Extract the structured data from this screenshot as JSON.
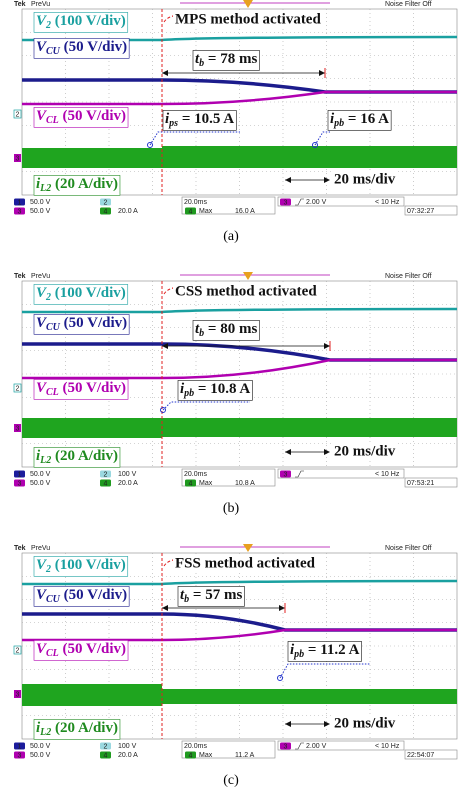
{
  "panels": [
    {
      "header": {
        "brand": "Tek",
        "mode": "PreVu",
        "filter": "Noise Filter Off"
      },
      "channels": [
        {
          "sym": "V",
          "sub": "2",
          "rest": " (100 V/div)"
        },
        {
          "sym": "V",
          "sub": "CU",
          "rest": " (50 V/div)"
        },
        {
          "sym": "V",
          "sub": "CL",
          "rest": " (50 V/div)"
        },
        {
          "sym": "i",
          "sub": "L2",
          "rest": " (20 A/div)"
        }
      ],
      "event": "MPS method activated",
      "duration": {
        "sym": "t",
        "sub": "b",
        "rest": " = 78 ms"
      },
      "currents": [
        {
          "sym": "i",
          "sub": "ps",
          "rest": " = 10.5 A"
        },
        {
          "sym": "i",
          "sub": "pb",
          "rest": " = 16 A"
        }
      ],
      "timebase_note": "20 ms/div",
      "markers": [
        "2",
        "3"
      ],
      "status": {
        "ch1": {
          "id": "1",
          "scale": "50.0 V"
        },
        "ch2": {
          "id": "2"
        },
        "ch3": {
          "id": "3",
          "scale": "50.0 V"
        },
        "ch4": {
          "id": "4",
          "scale": "20.0 A"
        },
        "timebase": "20.0ms",
        "trigger": {
          "id": "3",
          "level": "2.00 V"
        },
        "freq": "< 10 Hz",
        "max": {
          "id": "4",
          "label": "Max",
          "value": "16.0 A"
        },
        "time": "07:32:27"
      },
      "caption": "(a)"
    },
    {
      "header": {
        "brand": "Tek",
        "mode": "PreVu",
        "filter": "Noise Filter Off"
      },
      "channels": [
        {
          "sym": "V",
          "sub": "2",
          "rest": " (100 V/div)"
        },
        {
          "sym": "V",
          "sub": "CU",
          "rest": " (50 V/div)"
        },
        {
          "sym": "V",
          "sub": "CL",
          "rest": " (50 V/div)"
        },
        {
          "sym": "i",
          "sub": "L2",
          "rest": " (20 A/div)"
        }
      ],
      "event": "CSS method activated",
      "duration": {
        "sym": "t",
        "sub": "b",
        "rest": " = 80 ms"
      },
      "currents": [
        {
          "sym": "i",
          "sub": "pb",
          "rest": " = 10.8 A"
        }
      ],
      "timebase_note": "20 ms/div",
      "markers": [
        "2",
        "3"
      ],
      "status": {
        "ch1": {
          "id": "1",
          "scale": "50.0 V"
        },
        "ch2": {
          "id": "2",
          "scale": "100 V"
        },
        "ch3": {
          "id": "3",
          "scale": "50.0 V"
        },
        "ch4": {
          "id": "4",
          "scale": "20.0 A"
        },
        "timebase": "20.0ms",
        "trigger": {
          "id": "3"
        },
        "freq": "< 10 Hz",
        "max": {
          "id": "4",
          "label": "Max",
          "value": "10.8 A"
        },
        "time": "07:53:21"
      },
      "caption": "(b)"
    },
    {
      "header": {
        "brand": "Tek",
        "mode": "PreVu",
        "filter": "Noise Filter Off"
      },
      "channels": [
        {
          "sym": "V",
          "sub": "2",
          "rest": " (100 V/div)"
        },
        {
          "sym": "V",
          "sub": "CU",
          "rest": " (50 V/div)"
        },
        {
          "sym": "V",
          "sub": "CL",
          "rest": " (50 V/div)"
        },
        {
          "sym": "i",
          "sub": "L2",
          "rest": " (20 A/div)"
        }
      ],
      "event": "FSS method activated",
      "duration": {
        "sym": "t",
        "sub": "b",
        "rest": " = 57 ms"
      },
      "currents": [
        {
          "sym": "i",
          "sub": "pb",
          "rest": " = 11.2 A"
        }
      ],
      "timebase_note": "20 ms/div",
      "markers": [
        "2",
        "3"
      ],
      "status": {
        "ch1": {
          "id": "1",
          "scale": "50.0 V"
        },
        "ch2": {
          "id": "2",
          "scale": "100 V"
        },
        "ch3": {
          "id": "3",
          "scale": "50.0 V"
        },
        "ch4": {
          "id": "4",
          "scale": "20.0 A"
        },
        "timebase": "20.0ms",
        "trigger": {
          "id": "3",
          "level": "2.00 V"
        },
        "freq": "< 10 Hz",
        "max": {
          "id": "4",
          "label": "Max",
          "value": "11.2 A"
        },
        "time": "22:54:07"
      },
      "caption": "(c)"
    }
  ]
}
